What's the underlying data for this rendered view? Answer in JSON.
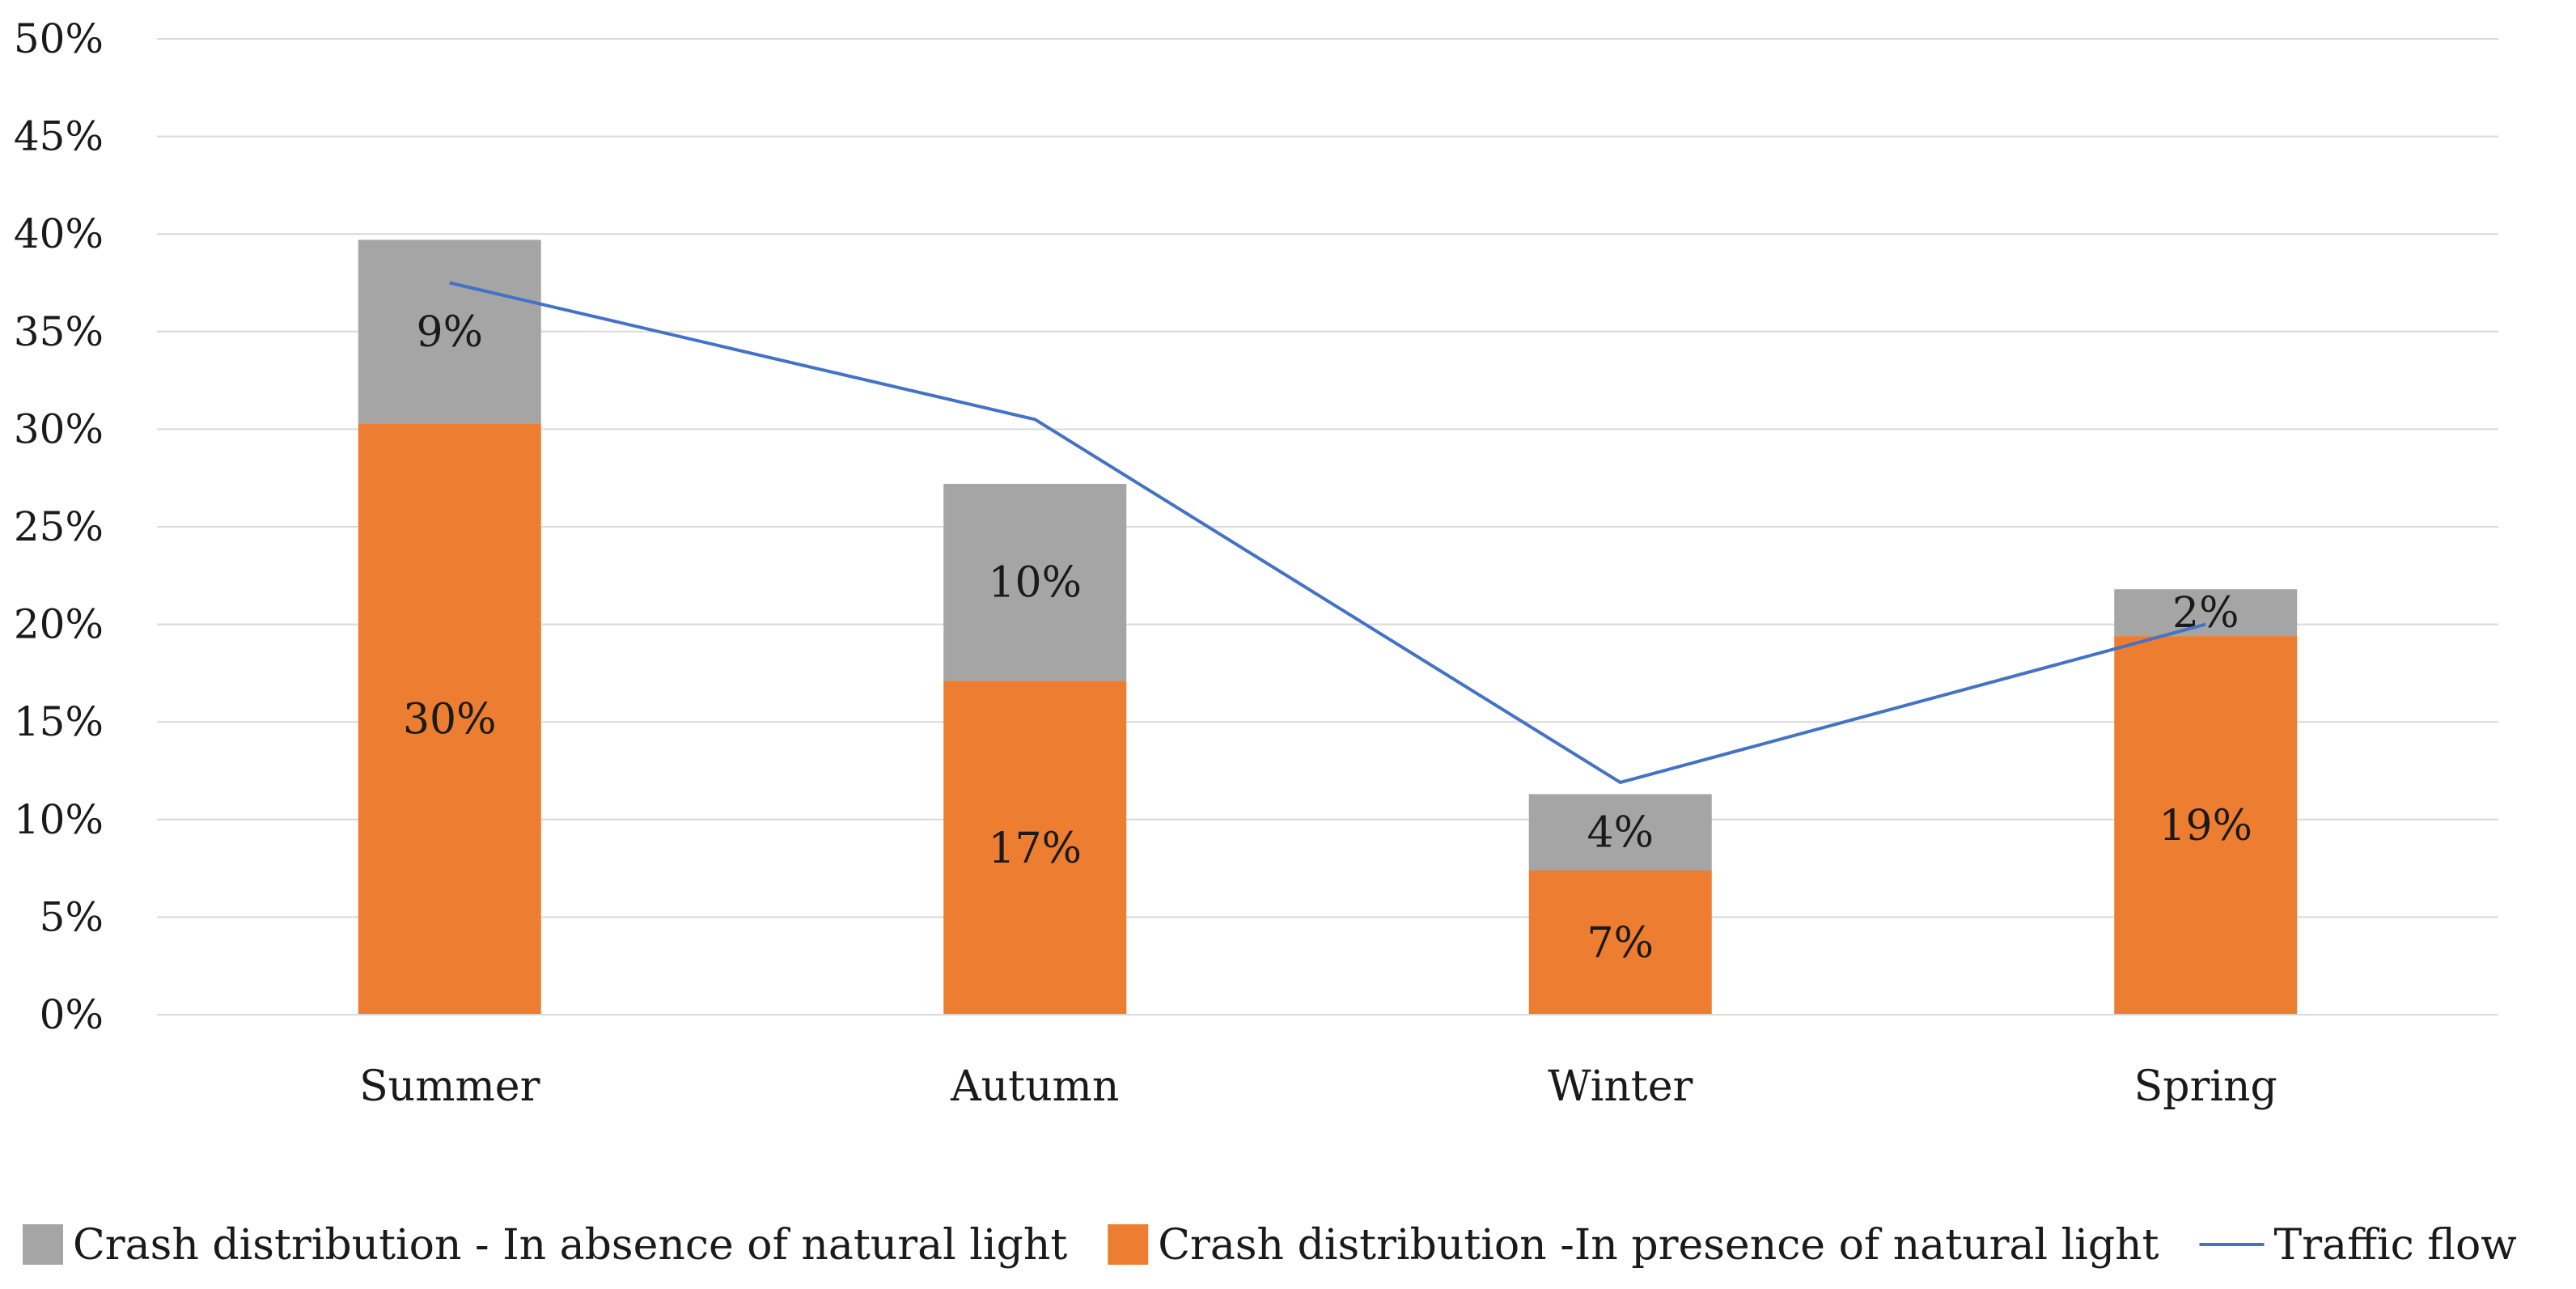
{
  "chart_data": {
    "type": "bar",
    "stacked": true,
    "categories": [
      "Summer",
      "Autumn",
      "Winter",
      "Spring"
    ],
    "series": [
      {
        "name": "Crash distribution -In presence of natural light",
        "kind": "bar",
        "color": "#ED7D31",
        "values": [
          30.3,
          17.1,
          7.4,
          19.4
        ],
        "labels": [
          "30%",
          "17%",
          "7%",
          "19%"
        ]
      },
      {
        "name": "Crash distribution - In absence of natural light",
        "kind": "bar",
        "color": "#A5A5A5",
        "values": [
          9.4,
          10.1,
          3.9,
          2.4
        ],
        "labels": [
          "9%",
          "10%",
          "4%",
          "2%"
        ]
      },
      {
        "name": "Traffic flow",
        "kind": "line",
        "color": "#4472C4",
        "values": [
          37.5,
          30.5,
          11.9,
          20.0
        ]
      }
    ],
    "legend_order": [
      "Crash distribution - In absence of natural light",
      "Crash distribution -In presence of natural light",
      "Traffic flow"
    ],
    "ylim": [
      0,
      50
    ],
    "yticks": [
      0,
      5,
      10,
      15,
      20,
      25,
      30,
      35,
      40,
      45,
      50
    ],
    "ytick_labels": [
      "0%",
      "5%",
      "10%",
      "15%",
      "20%",
      "25%",
      "30%",
      "35%",
      "40%",
      "45%",
      "50%"
    ],
    "grid": true,
    "legend_position": "bottom",
    "title": "",
    "xlabel": "",
    "ylabel": "",
    "gridline_color": "#D9D9D9"
  }
}
